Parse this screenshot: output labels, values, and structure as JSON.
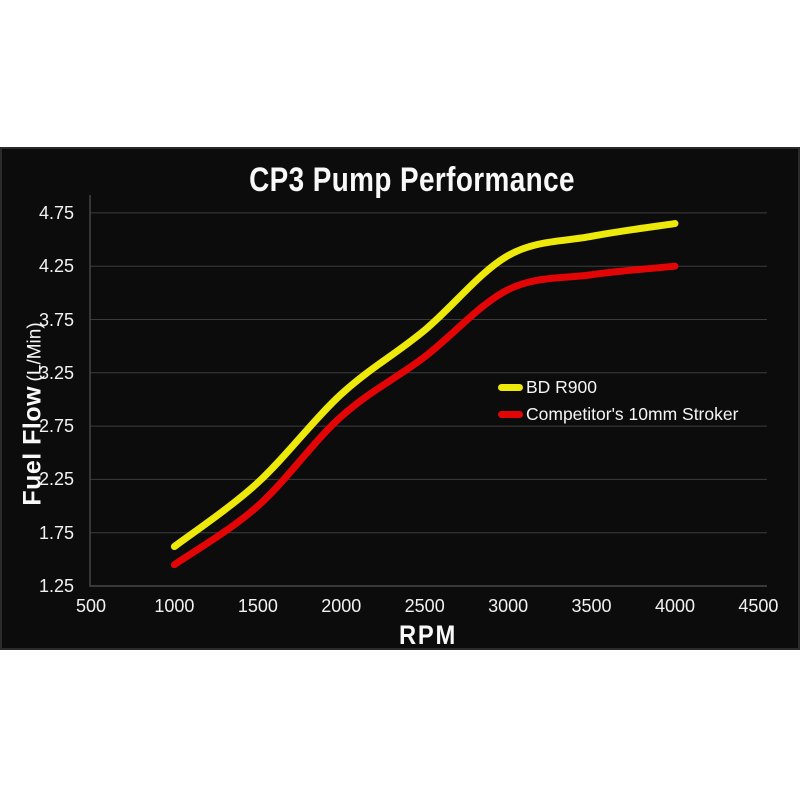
{
  "chart_data": {
    "type": "line",
    "title": "CP3 Pump Performance",
    "xlabel": "RPM",
    "ylabel": "Fuel Flow (L/Min)",
    "ylabel_main": "Fuel Flow",
    "ylabel_units": "(L/Min)",
    "xlim": [
      500,
      4500
    ],
    "ylim": [
      1.25,
      4.92
    ],
    "x_tick_labels": [
      "500",
      "1000",
      "1500",
      "2000",
      "2500",
      "3000",
      "3500",
      "4000",
      "4500"
    ],
    "x_ticks": [
      500,
      1000,
      1500,
      2000,
      2500,
      3000,
      3500,
      4000,
      4500
    ],
    "y_tick_labels": [
      "4.75",
      "4.25",
      "3.75",
      "3.25",
      "2.75",
      "2.25",
      "1.75",
      "1.25"
    ],
    "y_ticks": [
      4.75,
      4.25,
      3.75,
      3.25,
      2.75,
      2.25,
      1.75,
      1.25
    ],
    "grid": true,
    "legend_position": "center-right",
    "colors": {
      "background": "#0c0c0c",
      "panel_border": "#2a2a2a",
      "gridline": "#3c3c3c",
      "axis": "#474747",
      "text": "#f5f5f5"
    },
    "x": [
      1000,
      1500,
      2000,
      2500,
      3000,
      3500,
      4000
    ],
    "series": [
      {
        "name": "BD R900",
        "color": "#ede90b",
        "values": [
          1.62,
          2.22,
          3.05,
          3.65,
          4.35,
          4.53,
          4.65
        ]
      },
      {
        "name": "Competitor's 10mm Stroker",
        "color": "#e30505",
        "values": [
          1.45,
          2.0,
          2.84,
          3.4,
          4.03,
          4.17,
          4.25
        ]
      }
    ]
  }
}
